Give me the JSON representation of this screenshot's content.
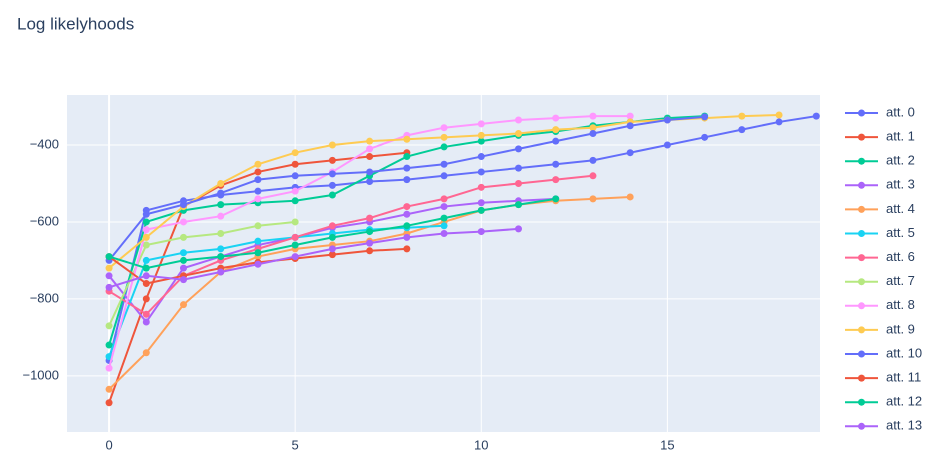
{
  "chart_data": {
    "type": "line",
    "title": "Log likelyhoods",
    "x": [
      0,
      1,
      2,
      3,
      4,
      5,
      6,
      7,
      8,
      9,
      10,
      11,
      12,
      13,
      14,
      15,
      16,
      17,
      18,
      19
    ],
    "xlim": [
      -1.13,
      19.1
    ],
    "ylim": [
      -1146,
      -270
    ],
    "xticks": [
      0,
      5,
      10,
      15
    ],
    "yticks": [
      {
        "value": -1000,
        "label": "−1000"
      },
      {
        "value": -800,
        "label": "−800"
      },
      {
        "value": -600,
        "label": "−600"
      },
      {
        "value": -400,
        "label": "−400"
      }
    ],
    "grid": true,
    "legend": "right",
    "series": [
      {
        "name": "att. 0",
        "color": "#636efa",
        "values": [
          -960,
          -570,
          -545,
          -530,
          -520,
          -510,
          -505,
          -495,
          -490,
          -480,
          -470,
          -460,
          -450,
          -440,
          -420,
          -400,
          -380,
          -360,
          -340,
          -325
        ]
      },
      {
        "name": "att. 1",
        "color": "#EF553B",
        "values": [
          -1070,
          -800,
          -560,
          -505,
          -470,
          -450,
          -440,
          -430,
          -420,
          null,
          null,
          null,
          null,
          null,
          null,
          null,
          null,
          null,
          null,
          null
        ]
      },
      {
        "name": "att. 2",
        "color": "#00cc96",
        "values": [
          -920,
          -600,
          -570,
          -555,
          -550,
          -545,
          -530,
          -480,
          -430,
          -405,
          -390,
          -375,
          -365,
          -350,
          -340,
          -330,
          -325,
          null,
          null,
          null
        ]
      },
      {
        "name": "att. 3",
        "color": "#ab63fa",
        "values": [
          -740,
          -860,
          -720,
          -690,
          -660,
          -640,
          -615,
          -600,
          -580,
          -560,
          -550,
          -545,
          -540,
          null,
          null,
          null,
          null,
          null,
          null,
          null
        ]
      },
      {
        "name": "att. 4",
        "color": "#FFA15A",
        "values": [
          -1035,
          -940,
          -815,
          -730,
          -690,
          -670,
          -660,
          -650,
          -630,
          -600,
          -570,
          -555,
          -545,
          -540,
          -535,
          null,
          null,
          null,
          null,
          null
        ]
      },
      {
        "name": "att. 5",
        "color": "#19d3f3",
        "values": [
          -950,
          -700,
          -680,
          -670,
          -650,
          -640,
          -630,
          -620,
          -615,
          -610,
          null,
          null,
          null,
          null,
          null,
          null,
          null,
          null,
          null,
          null
        ]
      },
      {
        "name": "att. 6",
        "color": "#FF6692",
        "values": [
          -780,
          -840,
          -740,
          -700,
          -670,
          -640,
          -610,
          -590,
          -560,
          -540,
          -510,
          -500,
          -490,
          -480,
          null,
          null,
          null,
          null,
          null,
          null
        ]
      },
      {
        "name": "att. 7",
        "color": "#B6E880",
        "values": [
          -870,
          -660,
          -640,
          -630,
          -610,
          -600,
          null,
          null,
          null,
          null,
          null,
          null,
          null,
          null,
          null,
          null,
          null,
          null,
          null,
          null
        ]
      },
      {
        "name": "att. 8",
        "color": "#FF97FF",
        "values": [
          -980,
          -620,
          -600,
          -585,
          -540,
          -520,
          -470,
          -410,
          -375,
          -355,
          -345,
          -335,
          -330,
          -325,
          -325,
          null,
          null,
          null,
          null,
          null
        ]
      },
      {
        "name": "att. 9",
        "color": "#FECB52",
        "values": [
          -720,
          -640,
          -560,
          -500,
          -450,
          -420,
          -400,
          -390,
          -385,
          -380,
          -375,
          -370,
          -360,
          -355,
          -340,
          -335,
          -330,
          -325,
          -322,
          null
        ]
      },
      {
        "name": "att. 10",
        "color": "#636efa",
        "values": [
          -700,
          -580,
          -555,
          -525,
          -490,
          -480,
          -475,
          -470,
          -460,
          -450,
          -430,
          -410,
          -390,
          -370,
          -350,
          -335,
          -327,
          null,
          null,
          null
        ]
      },
      {
        "name": "att. 11",
        "color": "#EF553B",
        "values": [
          -690,
          -760,
          -740,
          -720,
          -705,
          -695,
          -685,
          -675,
          -670,
          null,
          null,
          null,
          null,
          null,
          null,
          null,
          null,
          null,
          null,
          null
        ]
      },
      {
        "name": "att. 12",
        "color": "#00cc96",
        "values": [
          -690,
          -720,
          -700,
          -690,
          -680,
          -660,
          -640,
          -625,
          -610,
          -590,
          -570,
          -555,
          -540,
          null,
          null,
          null,
          null,
          null,
          null,
          null
        ]
      },
      {
        "name": "att. 13",
        "color": "#ab63fa",
        "values": [
          -770,
          -740,
          -750,
          -730,
          -710,
          -690,
          -670,
          -655,
          -640,
          -630,
          -625,
          -618,
          null,
          null,
          null,
          null,
          null,
          null,
          null,
          null
        ]
      }
    ]
  }
}
